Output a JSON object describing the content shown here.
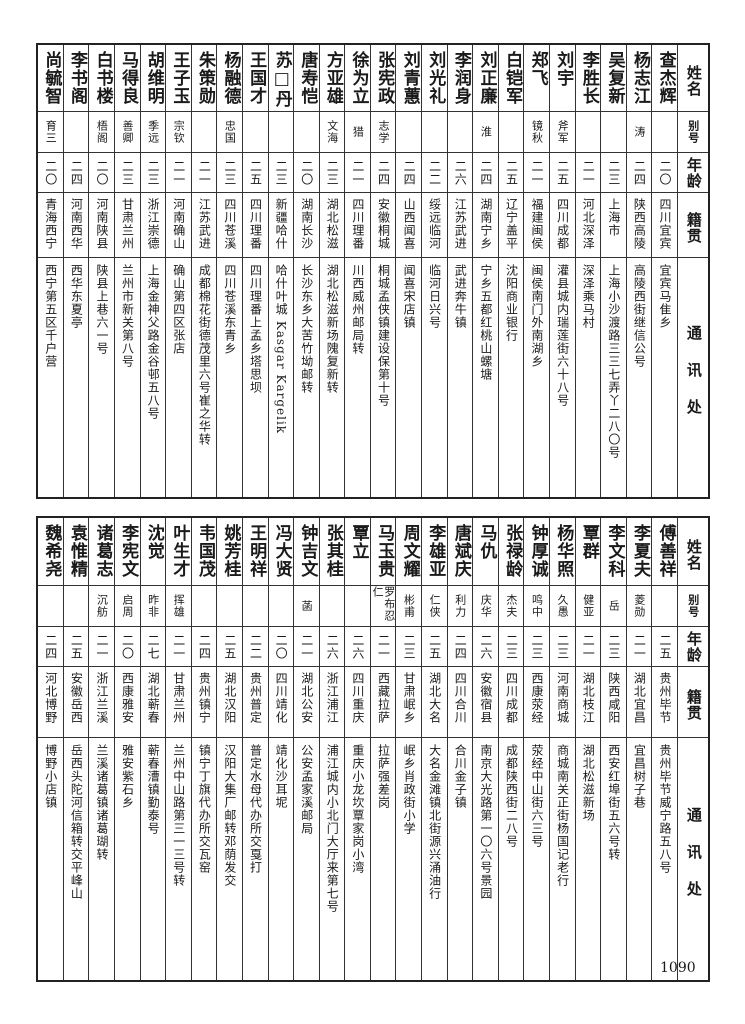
{
  "headers": {
    "name": "姓名",
    "alias": "别号",
    "age": "年龄",
    "origin": "籍贯",
    "address": "通讯处"
  },
  "top_rows": [
    {
      "name": "查杰辉",
      "alias": "",
      "age": "二〇",
      "origin": "四川宜宾",
      "address": "宜宾马隹乡"
    },
    {
      "name": "杨志江",
      "alias": "涛",
      "age": "二四",
      "origin": "陕西高陵",
      "address": "高陵西街继信公号"
    },
    {
      "name": "吴复新",
      "alias": "",
      "age": "二三",
      "origin": "上海市",
      "address": "上海小沙渡路三三七弄丫二八〇号"
    },
    {
      "name": "李胜长",
      "alias": "",
      "age": "二一",
      "origin": "河北深泽",
      "address": "深泽乘马村"
    },
    {
      "name": "刘宇",
      "alias": "斧军",
      "age": "二五",
      "origin": "四川成都",
      "address": "灌县城内瑞莲街六十八号"
    },
    {
      "name": "郑飞",
      "alias": "镜秋",
      "age": "二一",
      "origin": "福建闽侯",
      "address": "闽侯南门外南湖乡"
    },
    {
      "name": "白铠军",
      "alias": "",
      "age": "二五",
      "origin": "辽宁盖平",
      "address": "沈阳商业银行"
    },
    {
      "name": "刘正廉",
      "alias": "淮",
      "age": "二四",
      "origin": "湖南宁乡",
      "address": "宁乡五都红桃山螺塘"
    },
    {
      "name": "李润身",
      "alias": "",
      "age": "二六",
      "origin": "江苏武进",
      "address": "武进奔牛镇"
    },
    {
      "name": "刘光礼",
      "alias": "",
      "age": "二二",
      "origin": "绥远临河",
      "address": "临河日兴号"
    },
    {
      "name": "刘青蕙",
      "alias": "",
      "age": "二四",
      "origin": "山西闻喜",
      "address": "闻喜宋店镇"
    },
    {
      "name": "张宪政",
      "alias": "志学",
      "age": "二四",
      "origin": "安徽桐城",
      "address": "桐城孟侠镇建设保第十号"
    },
    {
      "name": "徐为立",
      "alias": "猎",
      "age": "二一",
      "origin": "四川理番",
      "address": "川西威州邮局转"
    },
    {
      "name": "方亚雄",
      "alias": "文海",
      "age": "二三",
      "origin": "湖北松滋",
      "address": "湖北松滋新场隗复新转"
    },
    {
      "name": "唐寿恺",
      "alias": "",
      "age": "二〇",
      "origin": "湖南长沙",
      "address": "长沙东乡大苦竹坳邮转"
    },
    {
      "name": "苏□丹",
      "alias": "",
      "age": "二三",
      "origin": "新疆哈什",
      "address": "哈什叶城 Kasgar Kargelik"
    },
    {
      "name": "王国才",
      "alias": "",
      "age": "二五",
      "origin": "四川理番",
      "address": "四川理番上孟乡塔思坝"
    },
    {
      "name": "杨融德",
      "alias": "忠国",
      "age": "二三",
      "origin": "四川苍溪",
      "address": "四川苍溪东青乡"
    },
    {
      "name": "朱策勋",
      "alias": "",
      "age": "二一",
      "origin": "江苏武进",
      "address": "成都棉花街德茂里六号崔之华转"
    },
    {
      "name": "王子玉",
      "alias": "宗钦",
      "age": "二一",
      "origin": "河南确山",
      "address": "确山第四区张店"
    },
    {
      "name": "胡维明",
      "alias": "季远",
      "age": "二三",
      "origin": "浙江崇德",
      "address": "上海金神父路金谷邨五八号"
    },
    {
      "name": "马得良",
      "alias": "善卿",
      "age": "二三",
      "origin": "甘肃兰州",
      "address": "兰州市新关第八号"
    },
    {
      "name": "白书楼",
      "alias": "梧阁",
      "age": "二〇",
      "origin": "河南陕县",
      "address": "陕县上巷六一号"
    },
    {
      "name": "李书阁",
      "alias": "",
      "age": "二四",
      "origin": "河南西华",
      "address": "西华东夏亭"
    },
    {
      "name": "尚毓智",
      "alias": "育三",
      "age": "二〇",
      "origin": "青海西宁",
      "address": "西宁第五区千户营"
    }
  ],
  "bottom_rows": [
    {
      "name": "傅善祥",
      "alias": "",
      "age": "二五",
      "origin": "贵州毕节",
      "address": "贵州毕节威宁路五八号"
    },
    {
      "name": "李夏夫",
      "alias": "菱勋",
      "age": "二一",
      "origin": "湖北宜昌",
      "address": "宜昌树子巷"
    },
    {
      "name": "李文科",
      "alias": "岳",
      "age": "二三",
      "origin": "陕西咸阳",
      "address": "西安红埠街五六号转"
    },
    {
      "name": "覃群",
      "alias": "健亚",
      "age": "二一",
      "origin": "湖北枝江",
      "address": "湖北松滋新场"
    },
    {
      "name": "杨华照",
      "alias": "久愚",
      "age": "二三",
      "origin": "河南商城",
      "address": "商城南关正街杨国记老行"
    },
    {
      "name": "钟厚诚",
      "alias": "鸣中",
      "age": "二三",
      "origin": "西康荥经",
      "address": "荥经中山街六三号"
    },
    {
      "name": "张禄龄",
      "alias": "杰夫",
      "age": "二三",
      "origin": "四川成都",
      "address": "成都陕西街二八号"
    },
    {
      "name": "马仇",
      "alias": "庆华",
      "age": "二六",
      "origin": "安徽宿县",
      "address": "南京大光路第一〇六号景园"
    },
    {
      "name": "唐斌庆",
      "alias": "利力",
      "age": "二四",
      "origin": "四川合川",
      "address": "合川金子镇"
    },
    {
      "name": "李雄亚",
      "alias": "仁侠",
      "age": "二五",
      "origin": "湖北大名",
      "address": "大名金滩镇北街源兴涌油行"
    },
    {
      "name": "周文耀",
      "alias": "彬甫",
      "age": "二三",
      "origin": "甘肃岷乡",
      "address": "岷乡肖政街小学"
    },
    {
      "name": "马玉贵",
      "alias": "罗布忍仁",
      "age": "二一",
      "origin": "西藏拉萨",
      "address": "拉萨强差岗"
    },
    {
      "name": "覃立",
      "alias": "",
      "age": "二六",
      "origin": "四川重庆",
      "address": "重庆小龙坎覃家岗小湾"
    },
    {
      "name": "张其桂",
      "alias": "",
      "age": "二六",
      "origin": "浙江浦江",
      "address": "浦江城内小北门大厅来第七号"
    },
    {
      "name": "钟吉文",
      "alias": "菡",
      "age": "二一",
      "origin": "湖北公安",
      "address": "公安孟家溪邮局"
    },
    {
      "name": "冯大贤",
      "alias": "",
      "age": "二〇",
      "origin": "四川靖化",
      "address": "靖化沙耳坭"
    },
    {
      "name": "王明祥",
      "alias": "",
      "age": "二二",
      "origin": "贵州普定",
      "address": "普定水母代办所交戛打"
    },
    {
      "name": "姚芳桂",
      "alias": "",
      "age": "二五",
      "origin": "湖北汉阳",
      "address": "汉阳大集厂邮转邓荫发交"
    },
    {
      "name": "韦国茂",
      "alias": "",
      "age": "二四",
      "origin": "贵州镇宁",
      "address": "镇宁丁旗代办所交瓦窑"
    },
    {
      "name": "叶生才",
      "alias": "挥雄",
      "age": "二一",
      "origin": "甘肃兰州",
      "address": "兰州中山路第三一三号转"
    },
    {
      "name": "沈觉",
      "alias": "昨非",
      "age": "二七",
      "origin": "湖北蕲春",
      "address": "蕲春漕镇勤泰号"
    },
    {
      "name": "李宪文",
      "alias": "启周",
      "age": "二〇",
      "origin": "西康雅安",
      "address": "雅安紫石乡"
    },
    {
      "name": "诸葛志",
      "alias": "沉舫",
      "age": "二一",
      "origin": "浙江兰溪",
      "address": "兰溪诸葛镇诸葛瑚转"
    },
    {
      "name": "袁惟精",
      "alias": "",
      "age": "二五",
      "origin": "安徽岳西",
      "address": "岳西头陀河信箱转交平峰山"
    },
    {
      "name": "魏希尧",
      "alias": "",
      "age": "二四",
      "origin": "河北博野",
      "address": "博野小店镇"
    }
  ],
  "page_number": "1090"
}
